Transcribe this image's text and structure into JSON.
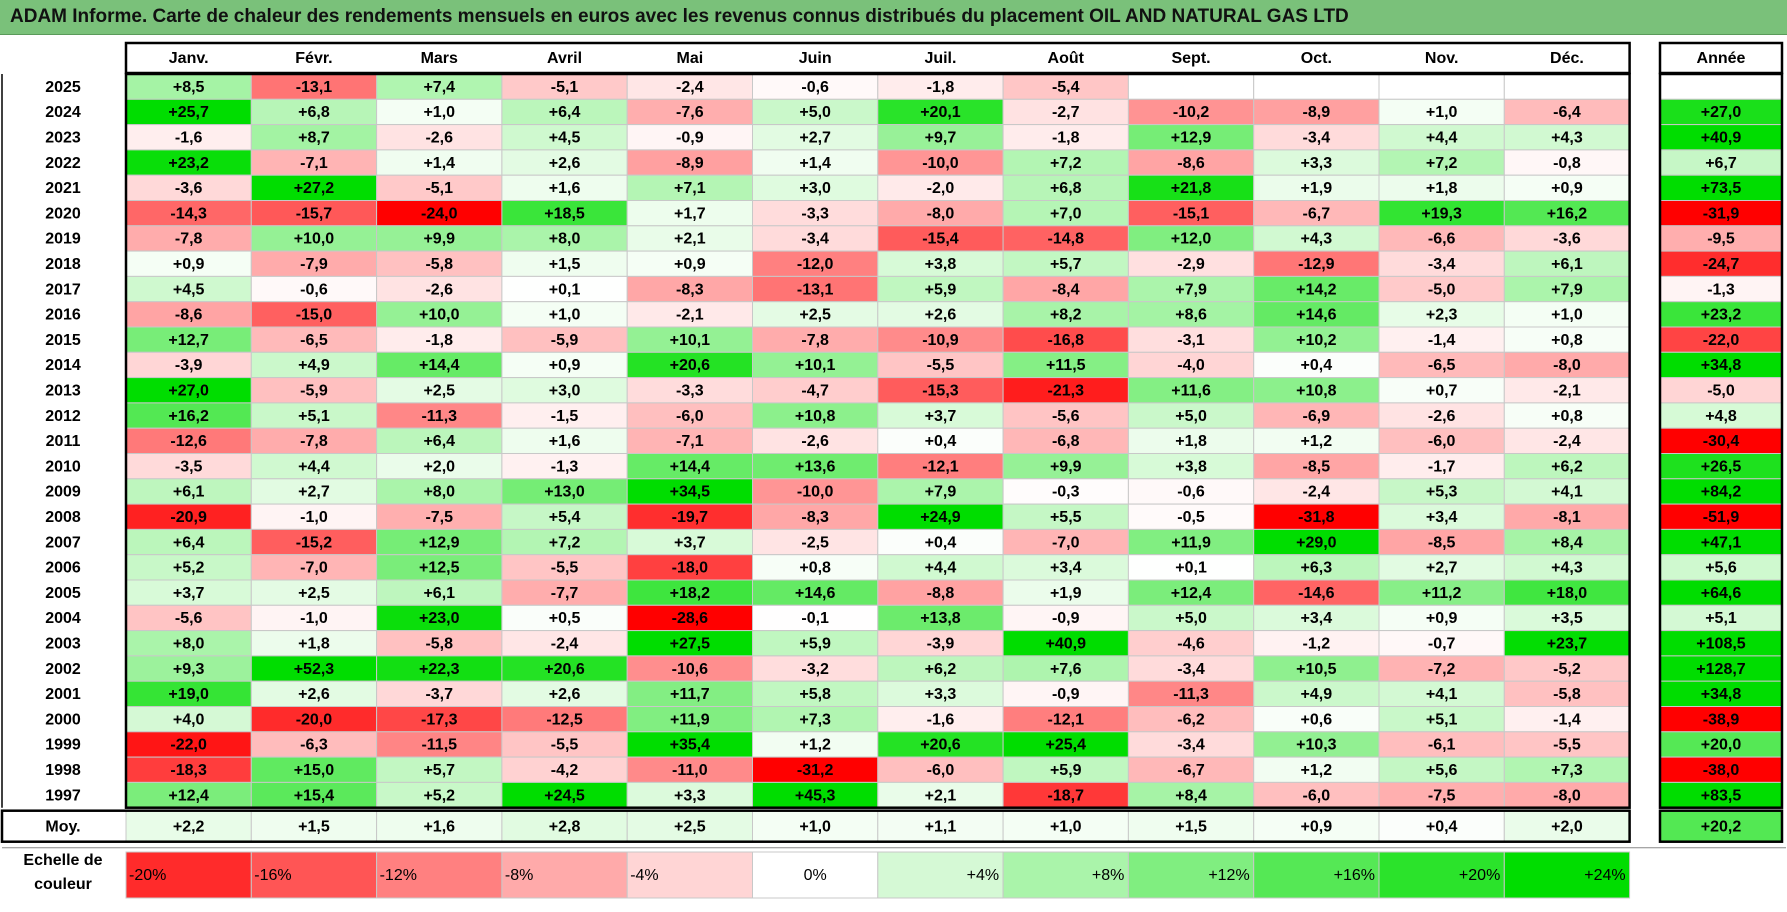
{
  "title": "ADAM Informe. Carte de chaleur des rendements mensuels en euros avec les revenus connus distribués du placement OIL AND NATURAL GAS LTD",
  "colors": {
    "title_bg": "#7ac17a",
    "neg_max": "#ff0000",
    "pos_max": "#00dd00",
    "neutral": "#ffffff"
  },
  "chart_data": {
    "type": "heatmap",
    "title": "ADAM Informe. Carte de chaleur des rendements mensuels en euros avec les revenus connus distribués du placement OIL AND NATURAL GAS LTD",
    "columns": [
      "Janv.",
      "Févr.",
      "Mars",
      "Avril",
      "Mai",
      "Juin",
      "Juil.",
      "Août",
      "Sept.",
      "Oct.",
      "Nov.",
      "Déc."
    ],
    "year_header": "Année",
    "rows": [
      {
        "label": "2025",
        "values": [
          "+8,5",
          "-13,1",
          "+7,4",
          "-5,1",
          "-2,4",
          "-0,6",
          "-1,8",
          "-5,4",
          "",
          "",
          "",
          ""
        ],
        "year": ""
      },
      {
        "label": "2024",
        "values": [
          "+25,7",
          "+6,8",
          "+1,0",
          "+6,4",
          "-7,6",
          "+5,0",
          "+20,1",
          "-2,7",
          "-10,2",
          "-8,9",
          "+1,0",
          "-6,4"
        ],
        "year": "+27,0"
      },
      {
        "label": "2023",
        "values": [
          "-1,6",
          "+8,7",
          "-2,6",
          "+4,5",
          "-0,9",
          "+2,7",
          "+9,7",
          "-1,8",
          "+12,9",
          "-3,4",
          "+4,4",
          "+4,3"
        ],
        "year": "+40,9"
      },
      {
        "label": "2022",
        "values": [
          "+23,2",
          "-7,1",
          "+1,4",
          "+2,6",
          "-8,9",
          "+1,4",
          "-10,0",
          "+7,2",
          "-8,6",
          "+3,3",
          "+7,2",
          "-0,8"
        ],
        "year": "+6,7"
      },
      {
        "label": "2021",
        "values": [
          "-3,6",
          "+27,2",
          "-5,1",
          "+1,6",
          "+7,1",
          "+3,0",
          "-2,0",
          "+6,8",
          "+21,8",
          "+1,9",
          "+1,8",
          "+0,9"
        ],
        "year": "+73,5"
      },
      {
        "label": "2020",
        "values": [
          "-14,3",
          "-15,7",
          "-24,0",
          "+18,5",
          "+1,7",
          "-3,3",
          "-8,0",
          "+7,0",
          "-15,1",
          "-6,7",
          "+19,3",
          "+16,2"
        ],
        "year": "-31,9"
      },
      {
        "label": "2019",
        "values": [
          "-7,8",
          "+10,0",
          "+9,9",
          "+8,0",
          "+2,1",
          "-3,4",
          "-15,4",
          "-14,8",
          "+12,0",
          "+4,3",
          "-6,6",
          "-3,6"
        ],
        "year": "-9,5"
      },
      {
        "label": "2018",
        "values": [
          "+0,9",
          "-7,9",
          "-5,8",
          "+1,5",
          "+0,9",
          "-12,0",
          "+3,8",
          "+5,7",
          "-2,9",
          "-12,9",
          "-3,4",
          "+6,1"
        ],
        "year": "-24,7"
      },
      {
        "label": "2017",
        "values": [
          "+4,5",
          "-0,6",
          "-2,6",
          "+0,1",
          "-8,3",
          "-13,1",
          "+5,9",
          "-8,4",
          "+7,9",
          "+14,2",
          "-5,0",
          "+7,9"
        ],
        "year": "-1,3"
      },
      {
        "label": "2016",
        "values": [
          "-8,6",
          "-15,0",
          "+10,0",
          "+1,0",
          "-2,1",
          "+2,5",
          "+2,6",
          "+8,2",
          "+8,6",
          "+14,6",
          "+2,3",
          "+1,0"
        ],
        "year": "+23,2"
      },
      {
        "label": "2015",
        "values": [
          "+12,7",
          "-6,5",
          "-1,8",
          "-5,9",
          "+10,1",
          "-7,8",
          "-10,9",
          "-16,8",
          "-3,1",
          "+10,2",
          "-1,4",
          "+0,8"
        ],
        "year": "-22,0"
      },
      {
        "label": "2014",
        "values": [
          "-3,9",
          "+4,9",
          "+14,4",
          "+0,9",
          "+20,6",
          "+10,1",
          "-5,5",
          "+11,5",
          "-4,0",
          "+0,4",
          "-6,5",
          "-8,0"
        ],
        "year": "+34,8"
      },
      {
        "label": "2013",
        "values": [
          "+27,0",
          "-5,9",
          "+2,5",
          "+3,0",
          "-3,3",
          "-4,7",
          "-15,3",
          "-21,3",
          "+11,6",
          "+10,8",
          "+0,7",
          "-2,1"
        ],
        "year": "-5,0"
      },
      {
        "label": "2012",
        "values": [
          "+16,2",
          "+5,1",
          "-11,3",
          "-1,5",
          "-6,0",
          "+10,8",
          "+3,7",
          "-5,6",
          "+5,0",
          "-6,9",
          "-2,6",
          "+0,8"
        ],
        "year": "+4,8"
      },
      {
        "label": "2011",
        "values": [
          "-12,6",
          "-7,8",
          "+6,4",
          "+1,6",
          "-7,1",
          "-2,6",
          "+0,4",
          "-6,8",
          "+1,8",
          "+1,2",
          "-6,0",
          "-2,4"
        ],
        "year": "-30,4"
      },
      {
        "label": "2010",
        "values": [
          "-3,5",
          "+4,4",
          "+2,0",
          "-1,3",
          "+14,4",
          "+13,6",
          "-12,1",
          "+9,9",
          "+3,8",
          "-8,5",
          "-1,7",
          "+6,2"
        ],
        "year": "+26,5"
      },
      {
        "label": "2009",
        "values": [
          "+6,1",
          "+2,7",
          "+8,0",
          "+13,0",
          "+34,5",
          "-10,0",
          "+7,9",
          "-0,3",
          "-0,6",
          "-2,4",
          "+5,3",
          "+4,1"
        ],
        "year": "+84,2"
      },
      {
        "label": "2008",
        "values": [
          "-20,9",
          "-1,0",
          "-7,5",
          "+5,4",
          "-19,7",
          "-8,3",
          "+24,9",
          "+5,5",
          "-0,5",
          "-31,8",
          "+3,4",
          "-8,1"
        ],
        "year": "-51,9"
      },
      {
        "label": "2007",
        "values": [
          "+6,4",
          "-15,2",
          "+12,9",
          "+7,2",
          "+3,7",
          "-2,5",
          "+0,4",
          "-7,0",
          "+11,9",
          "+29,0",
          "-8,5",
          "+8,4"
        ],
        "year": "+47,1"
      },
      {
        "label": "2006",
        "values": [
          "+5,2",
          "-7,0",
          "+12,5",
          "-5,5",
          "-18,0",
          "+0,8",
          "+4,4",
          "+3,4",
          "+0,1",
          "+6,3",
          "+2,7",
          "+4,3"
        ],
        "year": "+5,6"
      },
      {
        "label": "2005",
        "values": [
          "+3,7",
          "+2,5",
          "+6,1",
          "-7,7",
          "+18,2",
          "+14,6",
          "-8,8",
          "+1,9",
          "+12,4",
          "-14,6",
          "+11,2",
          "+18,0"
        ],
        "year": "+64,6"
      },
      {
        "label": "2004",
        "values": [
          "-5,6",
          "-1,0",
          "+23,0",
          "+0,5",
          "-28,6",
          "-0,1",
          "+13,8",
          "-0,9",
          "+5,0",
          "+3,4",
          "+0,9",
          "+3,5"
        ],
        "year": "+5,1"
      },
      {
        "label": "2003",
        "values": [
          "+8,0",
          "+1,8",
          "-5,8",
          "-2,4",
          "+27,5",
          "+5,9",
          "-3,9",
          "+40,9",
          "-4,6",
          "-1,2",
          "-0,7",
          "+23,7"
        ],
        "year": "+108,5"
      },
      {
        "label": "2002",
        "values": [
          "+9,3",
          "+52,3",
          "+22,3",
          "+20,6",
          "-10,6",
          "-3,2",
          "+6,2",
          "+7,6",
          "-3,4",
          "+10,5",
          "-7,2",
          "-5,2"
        ],
        "year": "+128,7"
      },
      {
        "label": "2001",
        "values": [
          "+19,0",
          "+2,6",
          "-3,7",
          "+2,6",
          "+11,7",
          "+5,8",
          "+3,3",
          "-0,9",
          "-11,3",
          "+4,9",
          "+4,1",
          "-5,8"
        ],
        "year": "+34,8"
      },
      {
        "label": "2000",
        "values": [
          "+4,0",
          "-20,0",
          "-17,3",
          "-12,5",
          "+11,9",
          "+7,3",
          "-1,6",
          "-12,1",
          "-6,2",
          "+0,6",
          "+5,1",
          "-1,4"
        ],
        "year": "-38,9"
      },
      {
        "label": "1999",
        "values": [
          "-22,0",
          "-6,3",
          "-11,5",
          "-5,5",
          "+35,4",
          "+1,2",
          "+20,6",
          "+25,4",
          "-3,4",
          "+10,3",
          "-6,1",
          "-5,5"
        ],
        "year": "+20,0"
      },
      {
        "label": "1998",
        "values": [
          "-18,3",
          "+15,0",
          "+5,7",
          "-4,2",
          "-11,0",
          "-31,2",
          "-6,0",
          "+5,9",
          "-6,7",
          "+1,2",
          "+5,6",
          "+7,3"
        ],
        "year": "-38,0"
      },
      {
        "label": "1997",
        "values": [
          "+12,4",
          "+15,4",
          "+5,2",
          "+24,5",
          "+3,3",
          "+45,3",
          "+2,1",
          "-18,7",
          "+8,4",
          "-6,0",
          "-7,5",
          "-8,0"
        ],
        "year": "+83,5"
      }
    ],
    "average": {
      "label": "Moy.",
      "values": [
        "+2,2",
        "+1,5",
        "+1,6",
        "+2,8",
        "+2,5",
        "+1,0",
        "+1,1",
        "+1,0",
        "+1,5",
        "+0,9",
        "+0,4",
        "+2,0"
      ],
      "year": "+20,2"
    },
    "scale": {
      "label_lines": [
        "Echelle de",
        "couleur"
      ],
      "items": [
        "-20%",
        "-16%",
        "-12%",
        "-8%",
        "-4%",
        "0%",
        "+4%",
        "+8%",
        "+12%",
        "+16%",
        "+20%",
        "+24%"
      ],
      "values": [
        -20,
        -16,
        -12,
        -8,
        -4,
        0,
        4,
        8,
        12,
        16,
        20,
        24
      ]
    }
  }
}
